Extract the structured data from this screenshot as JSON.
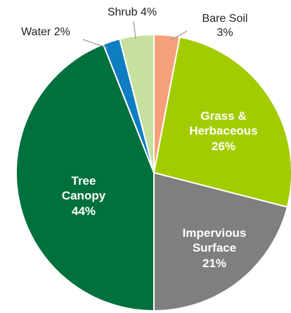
{
  "chart_data": {
    "type": "pie",
    "categories": [
      "Bare Soil",
      "Grass & Herbaceous",
      "Impervious Surface",
      "Tree Canopy",
      "Water",
      "Shrub"
    ],
    "values": [
      3,
      26,
      21,
      44,
      2,
      4
    ],
    "value_labels": [
      "3%",
      "26%",
      "21%",
      "44%",
      "2%",
      "4%"
    ],
    "colors": [
      "#f5a07a",
      "#a2cc00",
      "#7f7f7f",
      "#00713d",
      "#0f7dc2",
      "#c6e09e"
    ]
  }
}
